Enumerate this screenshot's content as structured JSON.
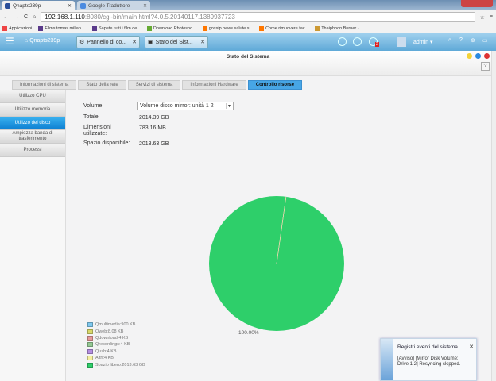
{
  "browser": {
    "tabs": [
      {
        "label": "Qnapts239p",
        "active": true
      },
      {
        "label": "Google Traduttore",
        "active": false
      }
    ],
    "url_host": "192.168.1.110",
    "url_rest": ":8080/cgi-bin/main.html?4.0.5.20140117.1389937723",
    "bookmarks": [
      "Applicazioni",
      "Films tomas milian ...",
      "Sapete tutti i film de...",
      "Download Photosho...",
      "gossip news salute s...",
      "Come rimuovere fac...",
      "Thaiphoon Burner - ..."
    ]
  },
  "qnap": {
    "home_label": "Qnapts239p",
    "app_tabs": [
      "Pannello di co...",
      "Stato del Sist..."
    ],
    "notification_badge": "2",
    "user": "admin",
    "window_title": "Stato del Sistema",
    "help": "?"
  },
  "tabs": [
    "Informazioni di sistema",
    "Stato della rete",
    "Servizi di sistema",
    "Informazioni Hardware",
    "Controllo risorse"
  ],
  "active_tab": "Controllo risorse",
  "sidebar": [
    "Utilizzo CPU",
    "Utilizzo memoria",
    "Utilizzo del disco",
    "Ampiezza banda di trasferimento",
    "Processi"
  ],
  "active_sidebar": "Utilizzo del disco",
  "info": {
    "volume_label": "Volume:",
    "volume_value": "Volume disco mirror: unità  1  2",
    "total_label": "Totale:",
    "total_value": "2014.39 GB",
    "used_label": "Dimensioni utilizzate:",
    "used_value": "783.16 MB",
    "free_label": "Spazio disponibile:",
    "free_value": "2013.63 GB"
  },
  "chart_data": {
    "type": "pie",
    "slice_label": "100.00%",
    "legend_position": "bottom-left",
    "legend": [
      "Qmultimedia:900 KB",
      "Qweb:8.08 KB",
      "Qdownload:4 KB",
      "Qrecordings:4 KB",
      "Qusb:4 KB",
      "Altri:4 KB",
      "Spazio libero:2013.63 GB"
    ],
    "categories": [
      "Qmultimedia",
      "Qweb",
      "Qdownload",
      "Qrecordings",
      "Qusb",
      "Altri",
      "Spazio libero"
    ],
    "values_kb": [
      900,
      8.08,
      4,
      4,
      4,
      4,
      2111447122
    ],
    "colors": [
      "#7ec8ee",
      "#d8d86a",
      "#e69a9a",
      "#93c893",
      "#b48ee0",
      "#f5f0a0",
      "#2ecf6a"
    ]
  },
  "notification": {
    "title": "Registri eventi del sistema",
    "message": "[Avviso] [Mirror Disk Volume: Drive 1 2] Resyncing skipped."
  }
}
